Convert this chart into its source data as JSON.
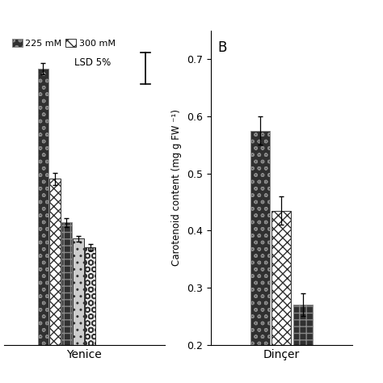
{
  "panel_A": {
    "xlabel": "Yenice",
    "bars": [
      {
        "value": 0.95,
        "err": 0.02,
        "hatch": "oo",
        "facecolor": "#303030",
        "edgecolor": "#888888"
      },
      {
        "value": 0.57,
        "err": 0.02,
        "hatch": "xxx",
        "facecolor": "white",
        "edgecolor": "#303030"
      },
      {
        "value": 0.42,
        "err": 0.015,
        "hatch": "++",
        "facecolor": "#303030",
        "edgecolor": "#888888"
      },
      {
        "value": 0.365,
        "err": 0.01,
        "hatch": "..",
        "facecolor": "#cccccc",
        "edgecolor": "#303030"
      },
      {
        "value": 0.335,
        "err": 0.01,
        "hatch": "OO",
        "facecolor": "#e8e8e8",
        "edgecolor": "#303030"
      }
    ],
    "ylim": [
      0,
      1.08
    ],
    "yticks": []
  },
  "panel_B": {
    "label": "B",
    "xlabel": "Dinçer",
    "ylabel": "Carotenoid content (mg g FW ⁻¹)",
    "bars": [
      {
        "value": 0.575,
        "err": 0.025,
        "hatch": "oo",
        "facecolor": "#303030",
        "edgecolor": "#888888"
      },
      {
        "value": 0.435,
        "err": 0.025,
        "hatch": "xxx",
        "facecolor": "white",
        "edgecolor": "#303030"
      },
      {
        "value": 0.27,
        "err": 0.02,
        "hatch": "++",
        "facecolor": "#303030",
        "edgecolor": "#888888"
      }
    ],
    "ylim": [
      0.2,
      0.75
    ],
    "yticks": [
      0.2,
      0.3,
      0.4,
      0.5,
      0.6,
      0.7
    ]
  },
  "legend_items": [
    {
      "label": "225 mM",
      "hatch": "oo",
      "facecolor": "#303030",
      "edgecolor": "#888888"
    },
    {
      "label": "300 mM",
      "hatch": "xx",
      "facecolor": "white",
      "edgecolor": "#303030"
    }
  ],
  "bar_width": 0.055,
  "bar_gap": 0.005,
  "bg_color": "#ffffff",
  "fontsize": 10
}
